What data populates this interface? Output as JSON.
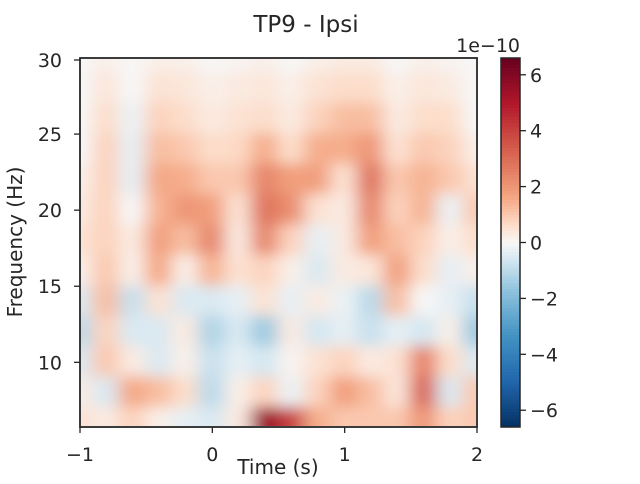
{
  "chart_data": {
    "type": "heatmap",
    "title": "TP9 - Ipsi",
    "xlabel": "Time (s)",
    "ylabel": "Frequency (Hz)",
    "xlim": [
      -1,
      2
    ],
    "ylim": [
      5.75,
      30
    ],
    "x_ticks": [
      -1,
      0,
      1,
      2
    ],
    "x_tick_labels": [
      "−1",
      "0",
      "1",
      "2"
    ],
    "y_ticks": [
      10,
      15,
      20,
      25,
      30
    ],
    "y_tick_labels": [
      "10",
      "15",
      "20",
      "25",
      "30"
    ],
    "colormap": "RdBu_r",
    "colorbar": {
      "offset_label": "1e−10",
      "vmin": -6.6,
      "vmax": 6.6,
      "ticks": [
        6,
        4,
        2,
        0,
        -2,
        -4,
        -6
      ],
      "tick_labels": [
        "6",
        "4",
        "2",
        "0",
        "−2",
        "−4",
        "−6"
      ]
    },
    "times": [
      -1,
      -0.8,
      -0.6,
      -0.4,
      -0.2,
      0,
      0.2,
      0.4,
      0.6,
      0.8,
      1.0,
      1.2,
      1.4,
      1.6,
      1.8,
      2.0
    ],
    "freqs": [
      30,
      28,
      26,
      24,
      22,
      20,
      18,
      16,
      14,
      12,
      10,
      8,
      6
    ],
    "values_1e-10": [
      [
        0,
        0.2,
        0,
        0.2,
        0.2,
        0,
        0.1,
        0.2,
        0,
        0.2,
        0.3,
        0.3,
        0,
        0.2,
        0.1,
        0
      ],
      [
        0,
        0.4,
        0,
        0.5,
        0.4,
        0.2,
        0.3,
        0.4,
        0.2,
        0.5,
        0.6,
        0.6,
        0.2,
        0.4,
        0.3,
        0
      ],
      [
        0,
        0.6,
        -0.2,
        0.8,
        0.6,
        0.3,
        0.5,
        0.6,
        0.3,
        0.8,
        1.2,
        1.2,
        0.3,
        0.6,
        0.6,
        0
      ],
      [
        0,
        0.8,
        -0.3,
        1.2,
        1,
        0.6,
        0.7,
        1.5,
        0.6,
        1.5,
        1.5,
        2.0,
        0.5,
        1.0,
        0.8,
        0.2
      ],
      [
        0.2,
        0.8,
        -0.3,
        1.6,
        1.5,
        1.0,
        1.0,
        2.4,
        1.8,
        1.8,
        0.5,
        2.8,
        1.0,
        1.4,
        1.0,
        0.5
      ],
      [
        0.3,
        0.8,
        0,
        1.4,
        2.0,
        1.8,
        0.5,
        2.8,
        2.2,
        0.5,
        0.3,
        2.4,
        0.8,
        1.4,
        -0.2,
        1.0
      ],
      [
        0.5,
        0.8,
        0.3,
        1.8,
        1.2,
        2.4,
        0.3,
        2.4,
        0.8,
        -0.3,
        0.3,
        1.8,
        1.2,
        0.8,
        0.2,
        0.6
      ],
      [
        0.2,
        1.0,
        0.2,
        1.6,
        0.2,
        1.4,
        0.5,
        0.8,
        0.2,
        -0.5,
        0.3,
        0.4,
        1.8,
        0.6,
        -0.3,
        0.2
      ],
      [
        -0.5,
        1.2,
        -0.8,
        0.5,
        -0.5,
        -0.5,
        -0.3,
        0.5,
        -0.3,
        0.3,
        -0.2,
        -1.0,
        1.2,
        0,
        -0.3,
        -0.8
      ],
      [
        -1.0,
        0.8,
        -0.5,
        -0.5,
        0.3,
        -1.2,
        -0.5,
        -1.5,
        0.3,
        -0.6,
        -0.3,
        -0.8,
        -0.3,
        -0.6,
        0.2,
        -1.5
      ],
      [
        -0.5,
        1.0,
        0.3,
        -0.5,
        0.2,
        -0.8,
        -0.3,
        -0.6,
        0.1,
        0.5,
        0.8,
        0.3,
        0.5,
        2.5,
        0.6,
        -0.5
      ],
      [
        0.3,
        -0.5,
        1.6,
        1.2,
        0.6,
        -1.0,
        0.2,
        0.8,
        -0.2,
        0.8,
        1.8,
        1.2,
        0.4,
        3.2,
        -0.5,
        1.0
      ],
      [
        0.5,
        0.3,
        0.8,
        0.2,
        -0.3,
        -0.5,
        0.3,
        5.5,
        4.0,
        1.5,
        1.0,
        1.0,
        1.0,
        2.0,
        0.8,
        1.0
      ]
    ],
    "grid": false
  }
}
